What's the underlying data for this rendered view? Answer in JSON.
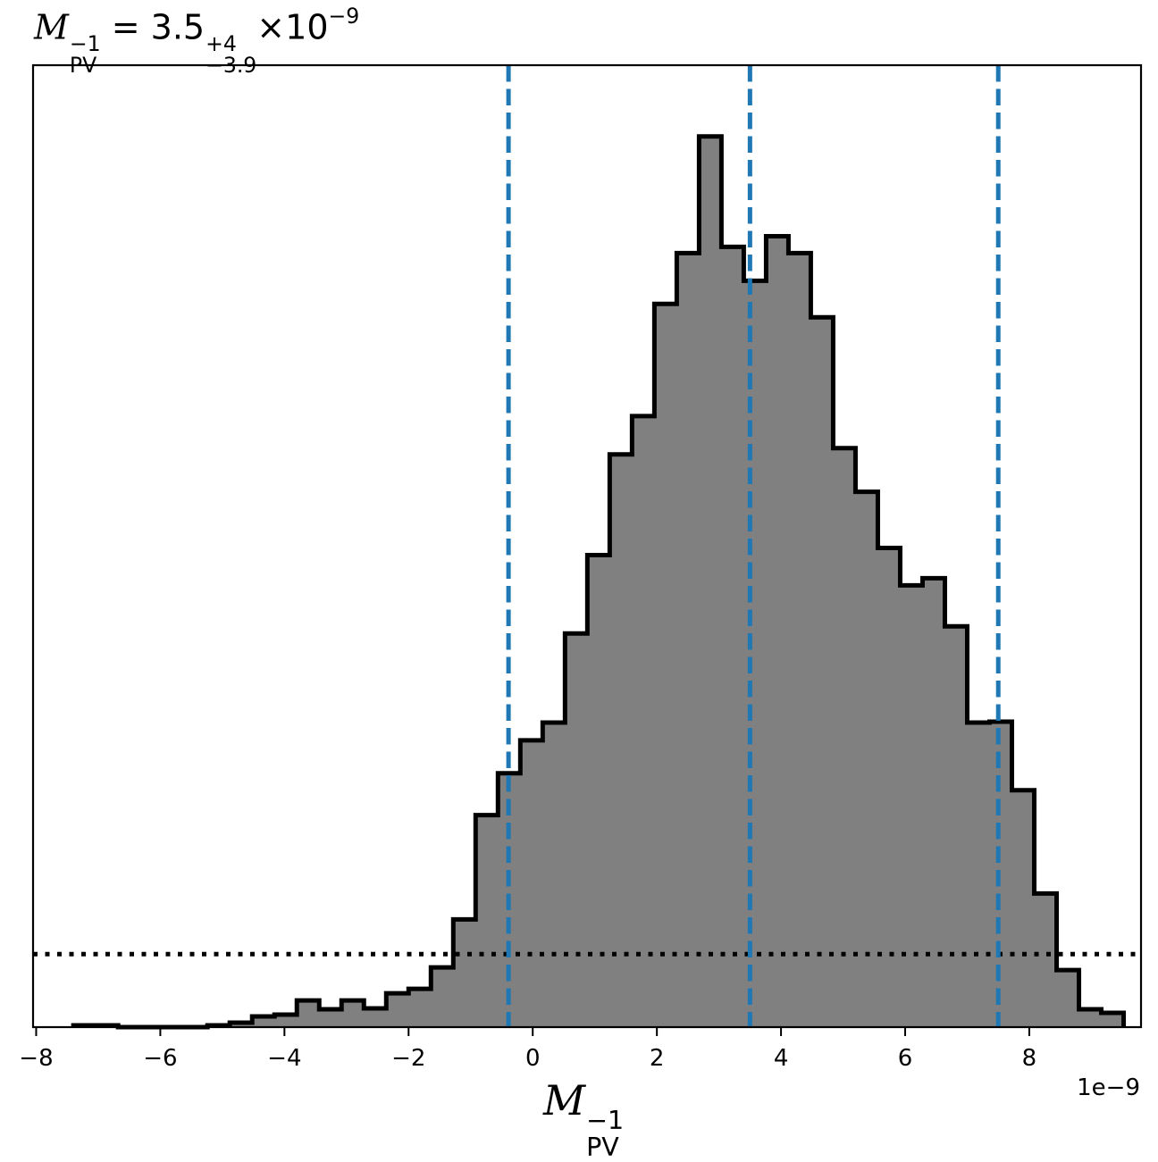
{
  "chart_data": {
    "type": "histogram",
    "title": {
      "symbol": "M",
      "symbol_sub": "PV",
      "symbol_sup": "−1",
      "equals": "=",
      "median": "3.5",
      "upper_err": "+4",
      "lower_err": "−3.9",
      "times": "×",
      "scale_base": "10",
      "scale_exp": "−9"
    },
    "xlabel": {
      "symbol": "M",
      "sub": "PV",
      "sup": "−1"
    },
    "x_offset_label": "1e−9",
    "xlim": [
      -8.05,
      9.8
    ],
    "ylim": [
      0,
      1.08
    ],
    "xticks": [
      -8,
      -6,
      -4,
      -2,
      0,
      2,
      4,
      6,
      8
    ],
    "xtick_labels": [
      "−8",
      "−6",
      "−4",
      "−2",
      "0",
      "2",
      "4",
      "6",
      "8"
    ],
    "yaxis_ticks_visible": false,
    "bin_edges": [
      -7.4,
      -7.04,
      -6.68,
      -6.32,
      -5.96,
      -5.6,
      -5.24,
      -4.88,
      -4.52,
      -4.16,
      -3.8,
      -3.44,
      -3.08,
      -2.72,
      -2.36,
      -2.0,
      -1.64,
      -1.28,
      -0.92,
      -0.56,
      -0.2,
      0.16,
      0.52,
      0.88,
      1.24,
      1.6,
      1.96,
      2.32,
      2.68,
      3.04,
      3.4,
      3.76,
      4.12,
      4.48,
      4.84,
      5.2,
      5.56,
      5.92,
      6.28,
      6.64,
      7.0,
      7.36,
      7.72,
      8.08,
      8.44,
      8.8,
      9.16,
      9.52
    ],
    "counts": [
      0.002,
      0.002,
      0.0,
      0.0,
      0.0,
      0.0,
      0.002,
      0.005,
      0.012,
      0.014,
      0.03,
      0.02,
      0.03,
      0.021,
      0.038,
      0.043,
      0.067,
      0.121,
      0.238,
      0.285,
      0.322,
      0.342,
      0.442,
      0.53,
      0.643,
      0.686,
      0.812,
      0.869,
      1.0,
      0.876,
      0.838,
      0.888,
      0.869,
      0.797,
      0.65,
      0.601,
      0.538,
      0.496,
      0.504,
      0.45,
      0.342,
      0.343,
      0.266,
      0.15,
      0.064,
      0.02,
      0.016,
      0.0
    ],
    "histogram_fill": "#808080",
    "histogram_edge": "#000000",
    "vertical_lines": {
      "x": [
        -0.39,
        3.5,
        7.5
      ],
      "style": "dashed",
      "color": "#1f77b4"
    },
    "horizontal_line": {
      "y": 0.082,
      "style": "dotted",
      "color": "#000000"
    },
    "grid": false,
    "legend": "none"
  }
}
